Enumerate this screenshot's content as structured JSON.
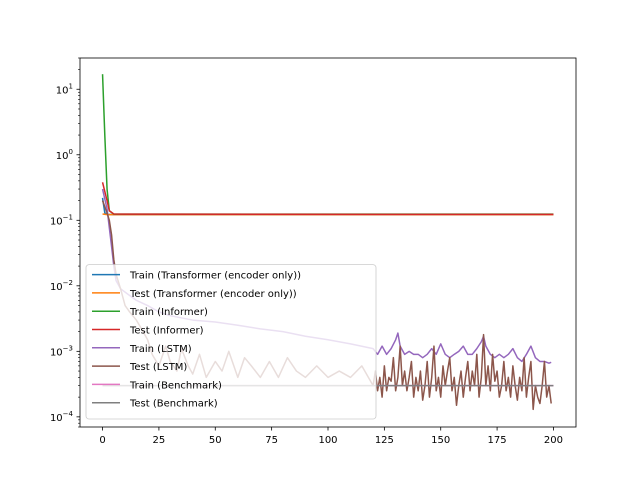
{
  "chart_data": {
    "type": "line",
    "title": "",
    "xlabel": "",
    "ylabel": "",
    "xlim": [
      -10,
      210
    ],
    "ylim": [
      7e-05,
      30
    ],
    "yscale": "log",
    "grid": false,
    "legend_position": "lower-left",
    "x_ticks": [
      0,
      25,
      50,
      75,
      100,
      125,
      150,
      175,
      200
    ],
    "x_tick_labels": [
      "0",
      "25",
      "50",
      "75",
      "100",
      "125",
      "150",
      "175",
      "200"
    ],
    "y_ticks": [
      0.0001,
      0.001,
      0.01,
      0.1,
      1,
      10
    ],
    "y_tick_labels": [
      {
        "base": "10",
        "exp": "−4"
      },
      {
        "base": "10",
        "exp": "−3"
      },
      {
        "base": "10",
        "exp": "−2"
      },
      {
        "base": "10",
        "exp": "−1"
      },
      {
        "base": "10",
        "exp": "0"
      },
      {
        "base": "10",
        "exp": "1"
      }
    ],
    "series": [
      {
        "name": "Train (Transformer (encoder only))",
        "color": "#1f77b4",
        "points": [
          [
            0,
            0.22
          ],
          [
            1,
            0.13
          ],
          [
            2,
            0.123
          ],
          [
            5,
            0.122
          ],
          [
            200,
            0.122
          ]
        ]
      },
      {
        "name": "Test (Transformer (encoder only))",
        "color": "#ff7f0e",
        "points": [
          [
            0,
            0.125
          ],
          [
            2,
            0.122
          ],
          [
            200,
            0.122
          ]
        ]
      },
      {
        "name": "Train (Informer)",
        "color": "#2ca02c",
        "points": [
          [
            0,
            17
          ],
          [
            1,
            2.0
          ],
          [
            2,
            0.3
          ],
          [
            3,
            0.14
          ],
          [
            5,
            0.124
          ],
          [
            200,
            0.124
          ]
        ]
      },
      {
        "name": "Test (Informer)",
        "color": "#d62728",
        "points": [
          [
            0,
            0.38
          ],
          [
            2,
            0.2
          ],
          [
            3,
            0.14
          ],
          [
            5,
            0.125
          ],
          [
            10,
            0.124
          ],
          [
            200,
            0.123
          ]
        ]
      },
      {
        "name": "Train (LSTM)",
        "color": "#9467bd",
        "points": [
          [
            0,
            0.3
          ],
          [
            2,
            0.15
          ],
          [
            4,
            0.04
          ],
          [
            5,
            0.02
          ],
          [
            6,
            0.012
          ],
          [
            8,
            0.009
          ],
          [
            10,
            0.008
          ],
          [
            15,
            0.006
          ],
          [
            20,
            0.005
          ],
          [
            25,
            0.004
          ],
          [
            30,
            0.0035
          ],
          [
            40,
            0.003
          ],
          [
            50,
            0.0028
          ],
          [
            60,
            0.0025
          ],
          [
            70,
            0.0022
          ],
          [
            80,
            0.002
          ],
          [
            90,
            0.0017
          ],
          [
            100,
            0.0015
          ],
          [
            110,
            0.0013
          ],
          [
            120,
            0.0011
          ],
          [
            122,
            0.0009
          ],
          [
            124,
            0.0012
          ],
          [
            126,
            0.0009
          ],
          [
            128,
            0.0011
          ],
          [
            130,
            0.0015
          ],
          [
            131,
            0.0019
          ],
          [
            132,
            0.0012
          ],
          [
            134,
            0.0009
          ],
          [
            136,
            0.001
          ],
          [
            138,
            0.0009
          ],
          [
            140,
            0.0009
          ],
          [
            142,
            0.0008
          ],
          [
            144,
            0.0009
          ],
          [
            146,
            0.0011
          ],
          [
            148,
            0.0009
          ],
          [
            150,
            0.0013
          ],
          [
            152,
            0.0009
          ],
          [
            154,
            0.0008
          ],
          [
            156,
            0.0009
          ],
          [
            158,
            0.001
          ],
          [
            160,
            0.0012
          ],
          [
            162,
            0.0009
          ],
          [
            164,
            0.0009
          ],
          [
            166,
            0.0011
          ],
          [
            168,
            0.0014
          ],
          [
            169,
            0.0017
          ],
          [
            170,
            0.0012
          ],
          [
            172,
            0.0009
          ],
          [
            174,
            0.0008
          ],
          [
            176,
            0.0009
          ],
          [
            178,
            0.0008
          ],
          [
            180,
            0.0009
          ],
          [
            182,
            0.0011
          ],
          [
            184,
            0.0008
          ],
          [
            186,
            0.0007
          ],
          [
            188,
            0.0009
          ],
          [
            190,
            0.0012
          ],
          [
            192,
            0.0008
          ],
          [
            194,
            0.0007
          ],
          [
            196,
            0.0007
          ],
          [
            198,
            0.00066
          ],
          [
            199,
            0.00068
          ]
        ]
      },
      {
        "name": "Test (LSTM)",
        "color": "#8c564b",
        "points": [
          [
            0,
            0.2
          ],
          [
            2,
            0.13
          ],
          [
            3,
            0.1
          ],
          [
            4,
            0.06
          ],
          [
            5,
            0.025
          ],
          [
            6,
            0.015
          ],
          [
            8,
            0.009
          ],
          [
            10,
            0.005
          ],
          [
            12,
            0.004
          ],
          [
            15,
            0.003
          ],
          [
            18,
            0.002
          ],
          [
            20,
            0.0015
          ],
          [
            22,
            0.0009
          ],
          [
            25,
            0.0006
          ],
          [
            28,
            0.0012
          ],
          [
            30,
            0.0007
          ],
          [
            33,
            0.0005
          ],
          [
            35,
            0.0011
          ],
          [
            38,
            0.0006
          ],
          [
            40,
            0.00045
          ],
          [
            43,
            0.0009
          ],
          [
            46,
            0.0004
          ],
          [
            50,
            0.0007
          ],
          [
            53,
            0.0005
          ],
          [
            56,
            0.001
          ],
          [
            60,
            0.0004
          ],
          [
            63,
            0.0008
          ],
          [
            66,
            0.0006
          ],
          [
            70,
            0.0004
          ],
          [
            74,
            0.0007
          ],
          [
            78,
            0.0004
          ],
          [
            82,
            0.0008
          ],
          [
            86,
            0.0005
          ],
          [
            90,
            0.0004
          ],
          [
            95,
            0.0006
          ],
          [
            100,
            0.0004
          ],
          [
            105,
            0.0005
          ],
          [
            110,
            0.0004
          ],
          [
            115,
            0.0006
          ],
          [
            120,
            0.0003
          ],
          [
            121,
            0.0005
          ],
          [
            122,
            0.00025
          ],
          [
            123,
            0.0004
          ],
          [
            124,
            0.0002
          ],
          [
            125,
            0.0006
          ],
          [
            126,
            0.00025
          ],
          [
            127,
            0.0004
          ],
          [
            128,
            0.00035
          ],
          [
            129,
            0.0008
          ],
          [
            130,
            0.00025
          ],
          [
            131,
            0.0004
          ],
          [
            132,
            0.0012
          ],
          [
            133,
            0.0003
          ],
          [
            134,
            0.0005
          ],
          [
            135,
            0.00025
          ],
          [
            136,
            0.0004
          ],
          [
            137,
            0.0007
          ],
          [
            138,
            0.0002
          ],
          [
            139,
            0.0004
          ],
          [
            140,
            0.00025
          ],
          [
            141,
            0.0005
          ],
          [
            142,
            0.00018
          ],
          [
            143,
            0.0003
          ],
          [
            144,
            0.0007
          ],
          [
            145,
            0.0002
          ],
          [
            146,
            0.0004
          ],
          [
            147,
            0.0012
          ],
          [
            148,
            0.00025
          ],
          [
            149,
            0.0004
          ],
          [
            150,
            0.0002
          ],
          [
            151,
            0.0006
          ],
          [
            152,
            0.0003
          ],
          [
            153,
            0.0005
          ],
          [
            154,
            0.0008
          ],
          [
            155,
            0.00025
          ],
          [
            156,
            0.0004
          ],
          [
            157,
            0.00015
          ],
          [
            158,
            0.0003
          ],
          [
            159,
            0.0005
          ],
          [
            160,
            0.0002
          ],
          [
            161,
            0.0004
          ],
          [
            162,
            0.0007
          ],
          [
            163,
            0.00025
          ],
          [
            164,
            0.0005
          ],
          [
            165,
            0.0003
          ],
          [
            166,
            0.0009
          ],
          [
            167,
            0.0002
          ],
          [
            168,
            0.0004
          ],
          [
            169,
            0.0018
          ],
          [
            170,
            0.0003
          ],
          [
            171,
            0.0006
          ],
          [
            172,
            0.00025
          ],
          [
            173,
            0.0009
          ],
          [
            174,
            0.00035
          ],
          [
            175,
            0.0005
          ],
          [
            176,
            0.0002
          ],
          [
            177,
            0.0003
          ],
          [
            178,
            0.0007
          ],
          [
            179,
            0.00025
          ],
          [
            180,
            0.0004
          ],
          [
            181,
            0.0002
          ],
          [
            182,
            0.0006
          ],
          [
            183,
            0.0003
          ],
          [
            184,
            0.00018
          ],
          [
            185,
            0.0004
          ],
          [
            186,
            0.00025
          ],
          [
            187,
            0.0008
          ],
          [
            188,
            0.0002
          ],
          [
            189,
            0.0004
          ],
          [
            190,
            0.0007
          ],
          [
            191,
            0.00013
          ],
          [
            192,
            0.0003
          ],
          [
            193,
            0.0002
          ],
          [
            194,
            0.00016
          ],
          [
            195,
            0.0003
          ],
          [
            196,
            0.0007
          ],
          [
            197,
            0.0002
          ],
          [
            198,
            0.0003
          ],
          [
            199,
            0.00016
          ]
        ]
      },
      {
        "name": "Train (Benchmark)",
        "color": "#e377c2",
        "points": [
          [
            0,
            0.0003
          ],
          [
            200,
            0.0003
          ]
        ]
      },
      {
        "name": "Test (Benchmark)",
        "color": "#7f7f7f",
        "points": [
          [
            0,
            0.0003
          ],
          [
            200,
            0.0003
          ]
        ]
      }
    ]
  }
}
